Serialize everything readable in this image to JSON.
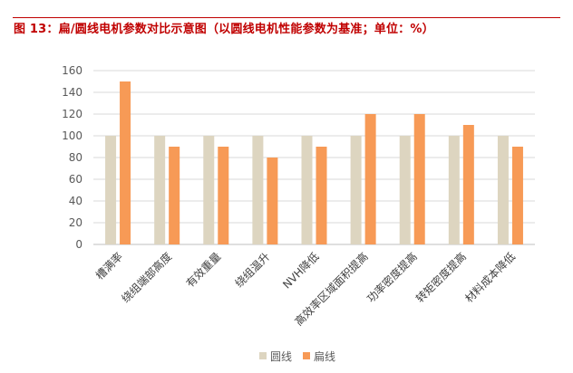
{
  "figure": {
    "title": "图 13：扁/圆线电机参数对比示意图（以圆线电机性能参数为基准；单位：%）"
  },
  "colors": {
    "title": "#c00000",
    "round_wire": "#ddd5c0",
    "flat_wire": "#f79a56",
    "grid": "#d9d9d9"
  },
  "chart_data": {
    "type": "bar",
    "title": "",
    "xlabel": "",
    "ylabel": "",
    "ylim": [
      0,
      160
    ],
    "yticks": [
      0,
      20,
      40,
      60,
      80,
      100,
      120,
      140,
      160
    ],
    "grid": true,
    "legend_position": "bottom",
    "categories": [
      "槽满率",
      "绕组端部高度",
      "有效重量",
      "绕组温升",
      "NVH降低",
      "高效率区域面积提高",
      "功率密度提高",
      "转矩密度提高",
      "材料成本降低"
    ],
    "series": [
      {
        "name": "圆线",
        "color": "#ddd5c0",
        "values": [
          100,
          100,
          100,
          100,
          100,
          100,
          100,
          100,
          100
        ]
      },
      {
        "name": "扁线",
        "color": "#f79a56",
        "values": [
          150,
          90,
          90,
          80,
          90,
          120,
          120,
          110,
          90
        ]
      }
    ]
  }
}
